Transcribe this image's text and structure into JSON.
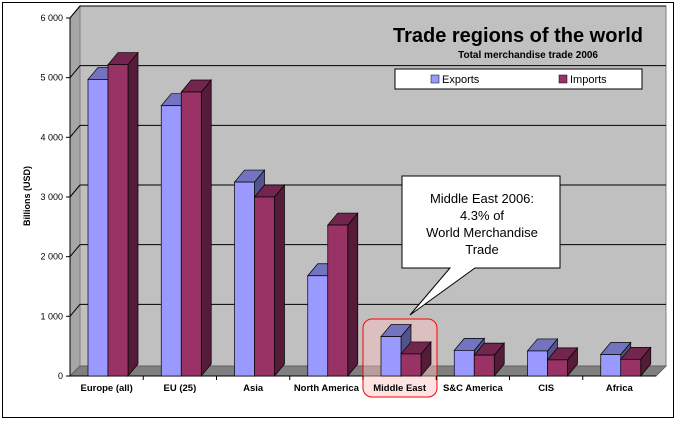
{
  "chart_data": {
    "type": "bar",
    "title": "Trade regions of the world",
    "subtitle": "Total merchandise trade 2006",
    "ylabel": "Billions (USD)",
    "xlabel": "",
    "ylim": [
      0,
      6000
    ],
    "yticks": [
      0,
      1000,
      2000,
      3000,
      4000,
      5000,
      6000
    ],
    "ytick_labels": [
      "0",
      "1 000",
      "2 000",
      "3 000",
      "4 000",
      "5 000",
      "6 000"
    ],
    "grid": true,
    "legend_position": "top-right",
    "categories": [
      "Europe (all)",
      "EU (25)",
      "Asia",
      "North America",
      "Middle East",
      "S&C America",
      "CIS",
      "Africa"
    ],
    "series": [
      {
        "name": "Exports",
        "color": "#9999ff",
        "values": [
          4970,
          4530,
          3250,
          1680,
          660,
          430,
          420,
          360
        ]
      },
      {
        "name": "Imports",
        "color": "#993366",
        "values": [
          5220,
          4760,
          3000,
          2530,
          370,
          350,
          270,
          280
        ]
      }
    ],
    "highlight_category": "Middle East",
    "annotation": {
      "lines": [
        "Middle East 2006:",
        "4.3% of",
        "World Merchandise",
        "Trade"
      ]
    }
  },
  "colors": {
    "plot_background": "#c0c0c0",
    "floor": "#808080",
    "highlight": "#ff0000"
  }
}
